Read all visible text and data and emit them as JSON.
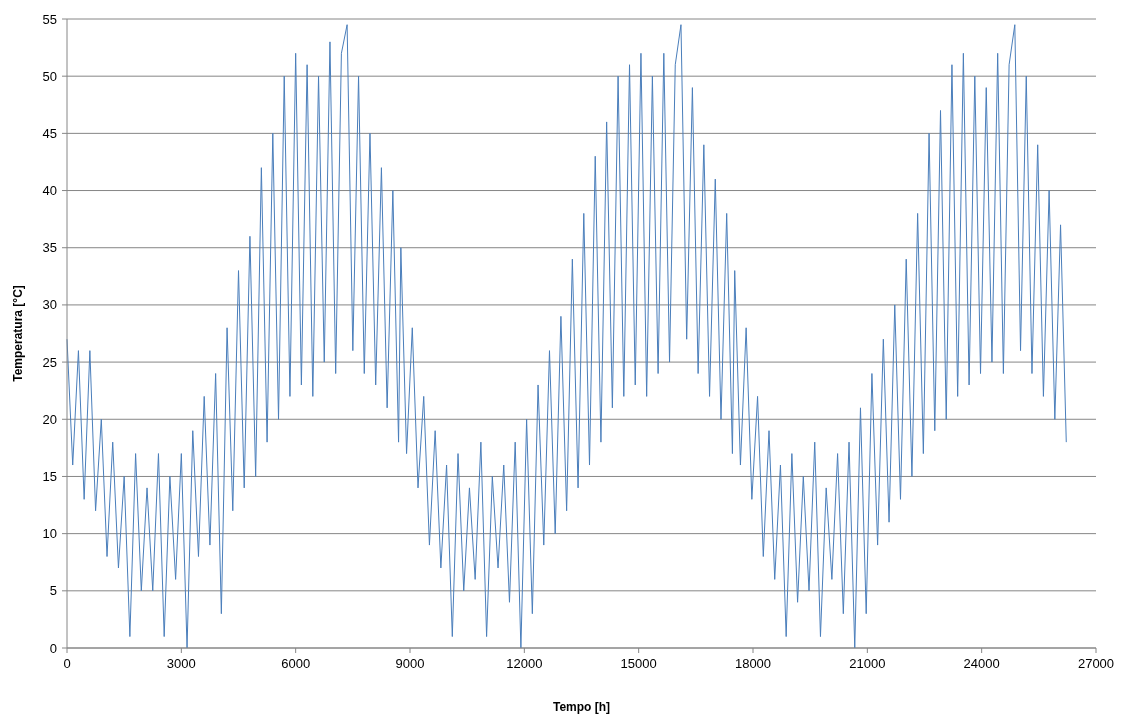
{
  "chart_data": {
    "type": "line",
    "xlabel": "Tempo [h]",
    "ylabel": "Temperatura [°C]",
    "xlim": [
      0,
      27000
    ],
    "xticks": [
      0,
      3000,
      6000,
      9000,
      12000,
      15000,
      18000,
      21000,
      24000,
      27000
    ],
    "ylim": [
      0,
      55
    ],
    "yticks": [
      0,
      5,
      10,
      15,
      20,
      25,
      30,
      35,
      40,
      45,
      50,
      55
    ],
    "grid": "y",
    "marker": "none",
    "line_style": "solid",
    "x": [
      0,
      150,
      300,
      450,
      600,
      750,
      900,
      1050,
      1200,
      1350,
      1500,
      1650,
      1800,
      1950,
      2100,
      2250,
      2400,
      2550,
      2700,
      2850,
      3000,
      3150,
      3300,
      3450,
      3600,
      3750,
      3900,
      4050,
      4200,
      4350,
      4500,
      4650,
      4800,
      4950,
      5100,
      5250,
      5400,
      5550,
      5700,
      5850,
      6000,
      6150,
      6300,
      6450,
      6600,
      6750,
      6900,
      7050,
      7200,
      7350,
      7500,
      7650,
      7800,
      7950,
      8100,
      8250,
      8400,
      8550,
      8700,
      8760,
      8910,
      9060,
      9210,
      9360,
      9510,
      9660,
      9810,
      9960,
      10110,
      10260,
      10410,
      10560,
      10710,
      10860,
      11010,
      11160,
      11310,
      11460,
      11610,
      11760,
      11910,
      12060,
      12210,
      12360,
      12510,
      12660,
      12810,
      12960,
      13110,
      13260,
      13410,
      13560,
      13710,
      13860,
      14010,
      14160,
      14310,
      14460,
      14610,
      14760,
      14910,
      15060,
      15210,
      15360,
      15510,
      15660,
      15810,
      15960,
      16110,
      16260,
      16410,
      16560,
      16710,
      16860,
      17010,
      17160,
      17310,
      17460,
      17520,
      17670,
      17820,
      17970,
      18120,
      18270,
      18420,
      18570,
      18720,
      18870,
      19020,
      19170,
      19320,
      19470,
      19620,
      19770,
      19920,
      20070,
      20220,
      20370,
      20520,
      20670,
      20820,
      20970,
      21120,
      21270,
      21420,
      21570,
      21720,
      21870,
      22020,
      22170,
      22320,
      22470,
      22620,
      22770,
      22920,
      23070,
      23220,
      23370,
      23520,
      23670,
      23820,
      23970,
      24120,
      24270,
      24420,
      24570,
      24720,
      24870,
      25020,
      25170,
      25320,
      25470,
      25620,
      25770,
      25920,
      26070,
      26220
    ],
    "series": [
      {
        "color": "#4a7ebb",
        "values": [
          27,
          16,
          26,
          13,
          26,
          12,
          20,
          8,
          18,
          7,
          15,
          1,
          17,
          5,
          14,
          5,
          17,
          1,
          15,
          6,
          17,
          0,
          19,
          8,
          22,
          9,
          24,
          3,
          28,
          12,
          33,
          14,
          36,
          15,
          42,
          18,
          45,
          20,
          50,
          22,
          52,
          23,
          51,
          22,
          50,
          25,
          53,
          24,
          52,
          54.5,
          26,
          50,
          24,
          45,
          23,
          42,
          21,
          40,
          18,
          35,
          17,
          28,
          14,
          22,
          9,
          19,
          7,
          16,
          1,
          17,
          5,
          14,
          6,
          18,
          1,
          15,
          7,
          16,
          4,
          18,
          0,
          20,
          3,
          23,
          9,
          26,
          10,
          29,
          12,
          34,
          14,
          38,
          16,
          43,
          18,
          46,
          21,
          50,
          22,
          51,
          23,
          52,
          22,
          50,
          24,
          52,
          25,
          51,
          54.5,
          27,
          49,
          24,
          44,
          22,
          41,
          20,
          38,
          17,
          33,
          16,
          28,
          13,
          22,
          8,
          19,
          6,
          16,
          1,
          17,
          4,
          15,
          5,
          18,
          1,
          14,
          6,
          17,
          3,
          18,
          0,
          21,
          3,
          24,
          9,
          27,
          11,
          30,
          13,
          34,
          15,
          38,
          17,
          45,
          19,
          47,
          20,
          51,
          22,
          52,
          23,
          50,
          24,
          49,
          25,
          52,
          24,
          51,
          54.5,
          26,
          50,
          24,
          44,
          22,
          40,
          20,
          37,
          18
        ]
      }
    ]
  }
}
